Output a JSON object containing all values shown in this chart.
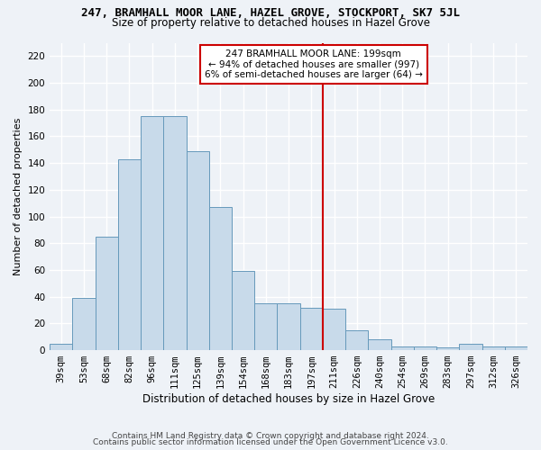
{
  "title": "247, BRAMHALL MOOR LANE, HAZEL GROVE, STOCKPORT, SK7 5JL",
  "subtitle": "Size of property relative to detached houses in Hazel Grove",
  "xlabel": "Distribution of detached houses by size in Hazel Grove",
  "ylabel": "Number of detached properties",
  "footer1": "Contains HM Land Registry data © Crown copyright and database right 2024.",
  "footer2": "Contains public sector information licensed under the Open Government Licence v3.0.",
  "bar_labels": [
    "39sqm",
    "53sqm",
    "68sqm",
    "82sqm",
    "96sqm",
    "111sqm",
    "125sqm",
    "139sqm",
    "154sqm",
    "168sqm",
    "183sqm",
    "197sqm",
    "211sqm",
    "226sqm",
    "240sqm",
    "254sqm",
    "269sqm",
    "283sqm",
    "297sqm",
    "312sqm",
    "326sqm"
  ],
  "bar_values": [
    5,
    39,
    85,
    143,
    175,
    175,
    149,
    107,
    59,
    35,
    35,
    32,
    31,
    15,
    8,
    3,
    3,
    2,
    5,
    3,
    3
  ],
  "bar_color": "#c8daea",
  "bar_edge_color": "#6699bb",
  "vline_color": "#cc0000",
  "vline_x": 11.5,
  "annotation_label": "247 BRAMHALL MOOR LANE: 199sqm",
  "annotation_line1": "← 94% of detached houses are smaller (997)",
  "annotation_line2": "6% of semi-detached houses are larger (64) →",
  "ylim": [
    0,
    230
  ],
  "yticks": [
    0,
    20,
    40,
    60,
    80,
    100,
    120,
    140,
    160,
    180,
    200,
    220
  ],
  "bg_color": "#eef2f7",
  "grid_color": "#ffffff",
  "annotation_box_facecolor": "#ffffff",
  "annotation_box_edgecolor": "#cc0000",
  "title_fontsize": 9,
  "subtitle_fontsize": 8.5,
  "ylabel_fontsize": 8,
  "xlabel_fontsize": 8.5,
  "tick_fontsize": 7.5,
  "footer_fontsize": 6.5,
  "annotation_fontsize": 7.5
}
